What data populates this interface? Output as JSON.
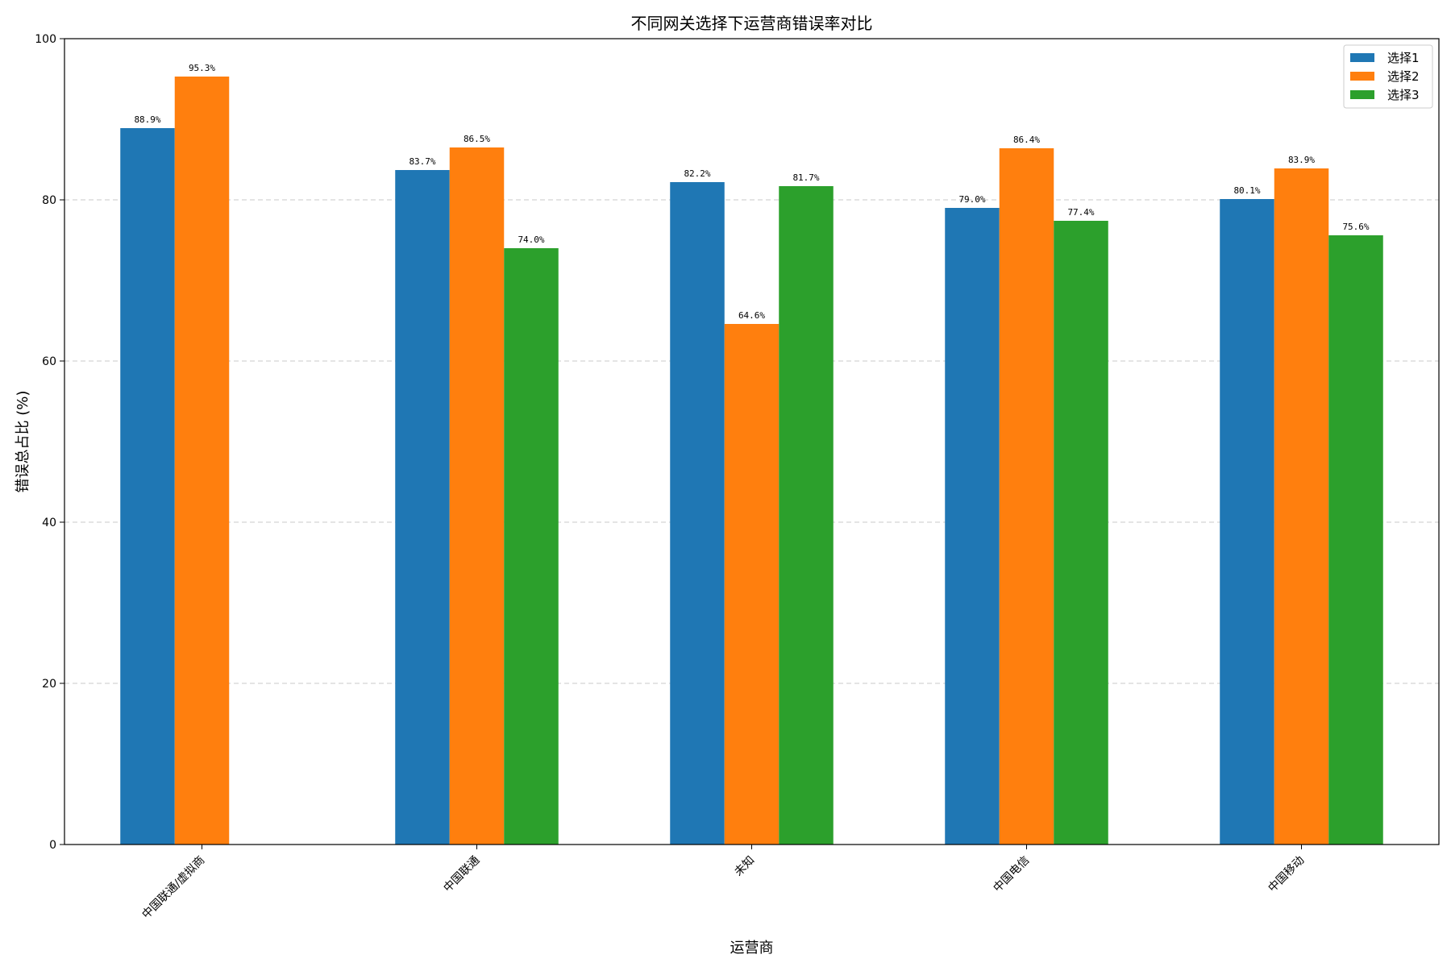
{
  "chart_data": {
    "type": "bar",
    "title": "不同网关选择下运营商错误率对比",
    "xlabel": "运营商",
    "ylabel": "错误总占比 (%)",
    "ylim": [
      0,
      100
    ],
    "yticks": [
      0,
      20,
      40,
      60,
      80,
      100
    ],
    "grid": "y-dashed",
    "legend_position": "top-right",
    "categories": [
      "中国联通/虚拟商",
      "中国联通",
      "未知",
      "中国电信",
      "中国移动"
    ],
    "series": [
      {
        "name": "选择1",
        "color": "#1f77b4",
        "values": [
          88.9,
          83.7,
          82.2,
          79.0,
          80.1
        ],
        "labels": [
          "88.9%",
          "83.7%",
          "82.2%",
          "79.0%",
          "80.1%"
        ]
      },
      {
        "name": "选择2",
        "color": "#ff7f0e",
        "values": [
          95.3,
          86.5,
          64.6,
          86.4,
          83.9
        ],
        "labels": [
          "95.3%",
          "86.5%",
          "64.6%",
          "86.4%",
          "83.9%"
        ]
      },
      {
        "name": "选择3",
        "color": "#2ca02c",
        "values": [
          null,
          74.0,
          81.7,
          77.4,
          75.6
        ],
        "labels": [
          "",
          "74.0%",
          "81.7%",
          "77.4%",
          "75.6%"
        ]
      }
    ]
  }
}
